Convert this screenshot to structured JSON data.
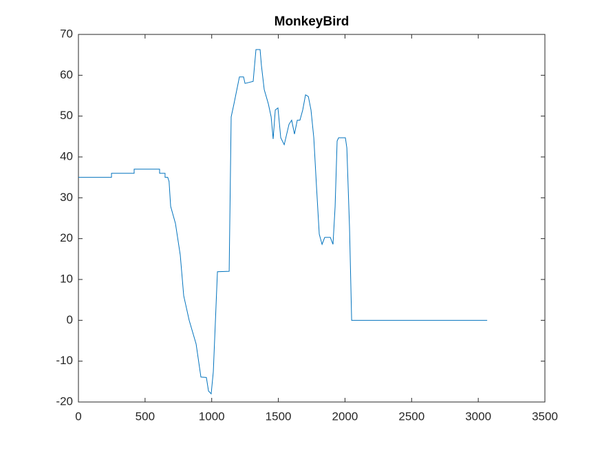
{
  "chart_data": {
    "type": "line",
    "title": "MonkeyBird",
    "x": [
      0,
      248,
      248,
      418,
      418,
      609,
      609,
      650,
      650,
      670,
      680,
      692,
      728,
      764,
      790,
      831,
      883,
      919,
      960,
      976,
      996,
      1012,
      1027,
      1043,
      1131,
      1146,
      1167,
      1208,
      1239,
      1250,
      1311,
      1332,
      1363,
      1373,
      1394,
      1425,
      1446,
      1461,
      1477,
      1497,
      1518,
      1544,
      1580,
      1600,
      1621,
      1642,
      1662,
      1683,
      1704,
      1725,
      1745,
      1766,
      1786,
      1807,
      1828,
      1848,
      1890,
      1910,
      1926,
      1941,
      1952,
      2003,
      2014,
      2034,
      2050,
      3067
    ],
    "series": [
      {
        "name": "MonkeyBird",
        "color": "#0072bd",
        "values": [
          35,
          35,
          36,
          36,
          37,
          37,
          36,
          36,
          35,
          35,
          34,
          27.9,
          23.7,
          16,
          6,
          0,
          -5.8,
          -13.9,
          -14,
          -17.3,
          -18,
          -12.6,
          -0.8,
          11.9,
          12,
          49.8,
          53,
          59.6,
          59.6,
          58,
          58.5,
          66.3,
          66.3,
          62.4,
          56.5,
          53,
          49.8,
          44.4,
          51.5,
          52,
          44.7,
          43,
          48,
          49,
          45.6,
          49,
          49,
          51.5,
          55.2,
          54.8,
          51.5,
          44.7,
          32.9,
          21.1,
          18.6,
          20.3,
          20.3,
          18.6,
          27.9,
          43.9,
          44.7,
          44.7,
          42.2,
          22.8,
          0,
          0
        ]
      }
    ],
    "xlim": [
      0,
      3500
    ],
    "xticks": [
      0,
      500,
      1000,
      1500,
      2000,
      2500,
      3000,
      3500
    ],
    "ylim": [
      -20,
      70
    ],
    "yticks": [
      -20,
      -10,
      0,
      10,
      20,
      30,
      40,
      50,
      60,
      70
    ]
  }
}
